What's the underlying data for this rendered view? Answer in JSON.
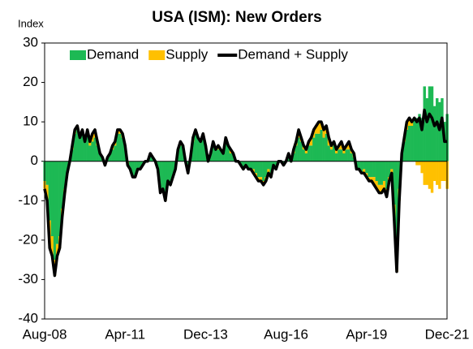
{
  "chart_data": {
    "type": "stacked-bar-line",
    "title": "USA (ISM): New Orders",
    "y_label": "Index",
    "categories": [
      "Aug-08",
      null,
      null,
      null,
      null,
      null,
      null,
      null,
      null,
      null,
      null,
      null,
      null,
      null,
      null,
      null,
      null,
      null,
      null,
      null,
      null,
      null,
      null,
      null,
      null,
      null,
      null,
      null,
      null,
      null,
      null,
      null,
      "Apr-11",
      null,
      null,
      null,
      null,
      null,
      null,
      null,
      null,
      null,
      null,
      null,
      null,
      null,
      null,
      null,
      null,
      null,
      null,
      null,
      null,
      null,
      null,
      null,
      null,
      null,
      null,
      null,
      null,
      null,
      null,
      null,
      "Dec-13",
      null,
      null,
      null,
      null,
      null,
      null,
      null,
      null,
      null,
      null,
      null,
      null,
      null,
      null,
      null,
      null,
      null,
      null,
      null,
      null,
      null,
      null,
      null,
      null,
      null,
      null,
      null,
      null,
      null,
      null,
      null,
      "Aug-16",
      null,
      null,
      null,
      null,
      null,
      null,
      null,
      null,
      null,
      null,
      null,
      null,
      null,
      null,
      null,
      null,
      null,
      null,
      null,
      null,
      null,
      null,
      null,
      null,
      null,
      null,
      null,
      null,
      null,
      null,
      null,
      "Apr-19",
      null,
      null,
      null,
      null,
      null,
      null,
      null,
      null,
      null,
      null,
      null,
      null,
      null,
      null,
      null,
      null,
      null,
      null,
      null,
      null,
      null,
      null,
      null,
      null,
      null,
      null,
      null,
      null,
      null,
      null,
      null,
      "Dec-21"
    ],
    "series": [
      {
        "name": "Demand",
        "color": "#1db954",
        "kind": "bar",
        "values": [
          -5,
          -6,
          -15,
          -19,
          -25,
          -21,
          -19,
          -12,
          -7,
          -3,
          0,
          3,
          7,
          8,
          6,
          7,
          5,
          7,
          4,
          5,
          6,
          4,
          2,
          1,
          -1,
          1,
          2,
          3,
          4,
          7,
          7,
          6,
          4,
          0,
          -2,
          -4,
          -4,
          -2,
          -2,
          -1,
          0,
          0,
          2,
          1,
          0,
          -2,
          -7,
          -7,
          -9,
          -5,
          -6,
          -4,
          -2,
          3,
          4,
          4,
          0,
          -3,
          1,
          5,
          7,
          6,
          5,
          6,
          4,
          0,
          2,
          4,
          3,
          3,
          3,
          2,
          5,
          4,
          2,
          2,
          0,
          0,
          -1,
          -2,
          -1,
          -2,
          -2,
          -2,
          -3,
          -4,
          -4,
          -5,
          -4,
          -2,
          -3,
          -1,
          -2,
          0,
          0,
          -1,
          0,
          1,
          0,
          2,
          4,
          6,
          5,
          3,
          2,
          4,
          4,
          6,
          7,
          7,
          8,
          6,
          7,
          4,
          3,
          4,
          2,
          3,
          3,
          2,
          3,
          3,
          2,
          1,
          -2,
          -2,
          -3,
          -2,
          -3,
          -4,
          -4,
          -4,
          -5,
          -6,
          -6,
          -5,
          -7,
          -4,
          -2,
          -11,
          -20,
          -7,
          2,
          5,
          8,
          9,
          9,
          11,
          11,
          12,
          11,
          19,
          16,
          19,
          19,
          14,
          16,
          15,
          16,
          10,
          12
        ]
      },
      {
        "name": "Supply",
        "color": "#ffc000",
        "kind": "bar",
        "values": [
          -2,
          -4,
          -7,
          -5,
          -4,
          -3,
          -3,
          -2,
          -1,
          0,
          0,
          1,
          1,
          1,
          0,
          1,
          0,
          1,
          1,
          2,
          2,
          1,
          0,
          0,
          0,
          0,
          0,
          1,
          1,
          1,
          1,
          1,
          0,
          -1,
          0,
          0,
          0,
          0,
          0,
          0,
          0,
          0,
          0,
          0,
          0,
          0,
          -1,
          0,
          -1,
          0,
          0,
          0,
          0,
          0,
          1,
          0,
          0,
          0,
          0,
          1,
          1,
          0,
          0,
          1,
          0,
          0,
          0,
          1,
          0,
          1,
          0,
          0,
          1,
          0,
          1,
          0,
          0,
          0,
          0,
          0,
          0,
          0,
          0,
          -1,
          -1,
          -1,
          -1,
          -1,
          -1,
          -1,
          -1,
          0,
          0,
          0,
          0,
          0,
          0,
          1,
          0,
          1,
          1,
          2,
          1,
          1,
          1,
          1,
          2,
          2,
          2,
          3,
          2,
          2,
          2,
          2,
          1,
          1,
          1,
          1,
          2,
          1,
          1,
          2,
          1,
          1,
          0,
          0,
          0,
          -1,
          -1,
          -1,
          -1,
          -2,
          -2,
          -2,
          -2,
          -2,
          -2,
          -1,
          -1,
          -4,
          -8,
          -3,
          0,
          1,
          2,
          2,
          1,
          0,
          -1,
          -1,
          -3,
          -6,
          -6,
          -7,
          -8,
          -5,
          -6,
          -7,
          -5,
          -5,
          -7
        ]
      },
      {
        "name": "Demand + Supply",
        "color": "#000000",
        "kind": "line",
        "values": [
          -7,
          -10,
          -22,
          -24,
          -29,
          -24,
          -22,
          -14,
          -8,
          -3,
          0,
          4,
          8,
          9,
          6,
          8,
          5,
          8,
          5,
          7,
          8,
          5,
          2,
          1,
          -1,
          1,
          2,
          4,
          5,
          8,
          8,
          7,
          4,
          -1,
          -2,
          -4,
          -4,
          -2,
          -2,
          -1,
          0,
          0,
          2,
          1,
          0,
          -2,
          -8,
          -7,
          -10,
          -5,
          -6,
          -4,
          -2,
          3,
          5,
          4,
          0,
          -3,
          1,
          6,
          8,
          6,
          5,
          7,
          4,
          0,
          2,
          5,
          3,
          4,
          3,
          2,
          6,
          4,
          3,
          2,
          0,
          0,
          -1,
          -2,
          -1,
          -2,
          -2,
          -3,
          -4,
          -5,
          -5,
          -6,
          -5,
          -3,
          -4,
          -1,
          -2,
          0,
          0,
          -1,
          0,
          2,
          0,
          3,
          5,
          8,
          6,
          4,
          3,
          5,
          6,
          8,
          9,
          10,
          10,
          8,
          9,
          6,
          4,
          5,
          3,
          4,
          5,
          3,
          4,
          5,
          3,
          2,
          -2,
          -2,
          -3,
          -3,
          -4,
          -5,
          -5,
          -6,
          -7,
          -8,
          -8,
          -7,
          -9,
          -5,
          -3,
          -15,
          -28,
          -10,
          2,
          6,
          10,
          11,
          10,
          11,
          10,
          11,
          8,
          13,
          10,
          12,
          11,
          9,
          10,
          8,
          11,
          5,
          5
        ]
      }
    ],
    "ylim": [
      -40,
      30
    ],
    "yticks": [
      -40,
      -30,
      -20,
      -10,
      0,
      10,
      20,
      30
    ],
    "legend": "top"
  }
}
